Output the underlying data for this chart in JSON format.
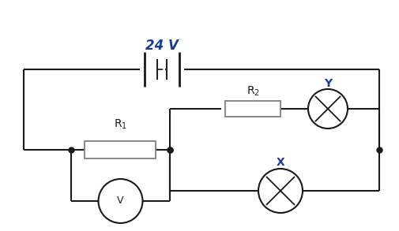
{
  "title_voltage": "24 V",
  "label_R1": "R$_1$",
  "label_R2": "R$_2$",
  "label_X": "X",
  "label_Y": "Y",
  "label_V": "V",
  "line_color": "#1a1a1a",
  "voltage_color": "#1a3a9a",
  "label_color": "#1a1a1a",
  "blue_label_color": "#1a3a9a",
  "resistor_color": "#888888",
  "bg_color": "#ffffff",
  "figsize": [
    5.06,
    2.93
  ],
  "dpi": 100
}
